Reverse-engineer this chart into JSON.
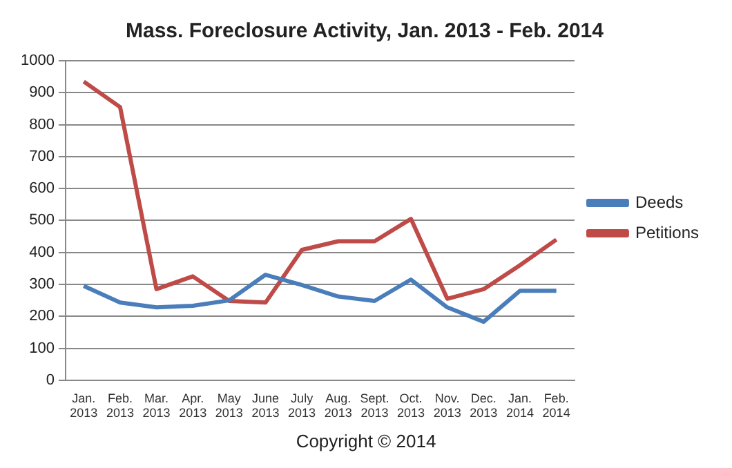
{
  "chart_data": {
    "type": "line",
    "title": "Mass. Foreclosure Activity, Jan. 2013 - Feb. 2014",
    "categories": [
      "Jan. 2013",
      "Feb. 2013",
      "Mar. 2013",
      "Apr. 2013",
      "May 2013",
      "June 2013",
      "July 2013",
      "Aug. 2013",
      "Sept. 2013",
      "Oct. 2013",
      "Nov. 2013",
      "Dec. 2013",
      "Jan. 2014",
      "Feb. 2014"
    ],
    "series": [
      {
        "name": "Deeds",
        "color": "#4a7ebb",
        "values": [
          295,
          243,
          228,
          233,
          250,
          330,
          298,
          262,
          248,
          315,
          228,
          183,
          280,
          280
        ]
      },
      {
        "name": "Petitions",
        "color": "#be4b48",
        "values": [
          935,
          855,
          285,
          325,
          248,
          243,
          408,
          435,
          435,
          505,
          255,
          285,
          360,
          440
        ]
      }
    ],
    "ylim": [
      0,
      1000
    ],
    "yticks": [
      0,
      100,
      200,
      300,
      400,
      500,
      600,
      700,
      800,
      900,
      1000
    ],
    "grid": "y",
    "legend": "right",
    "marker": "none",
    "line_style": "solid",
    "annotations": [
      "Copyright © 2014"
    ]
  }
}
